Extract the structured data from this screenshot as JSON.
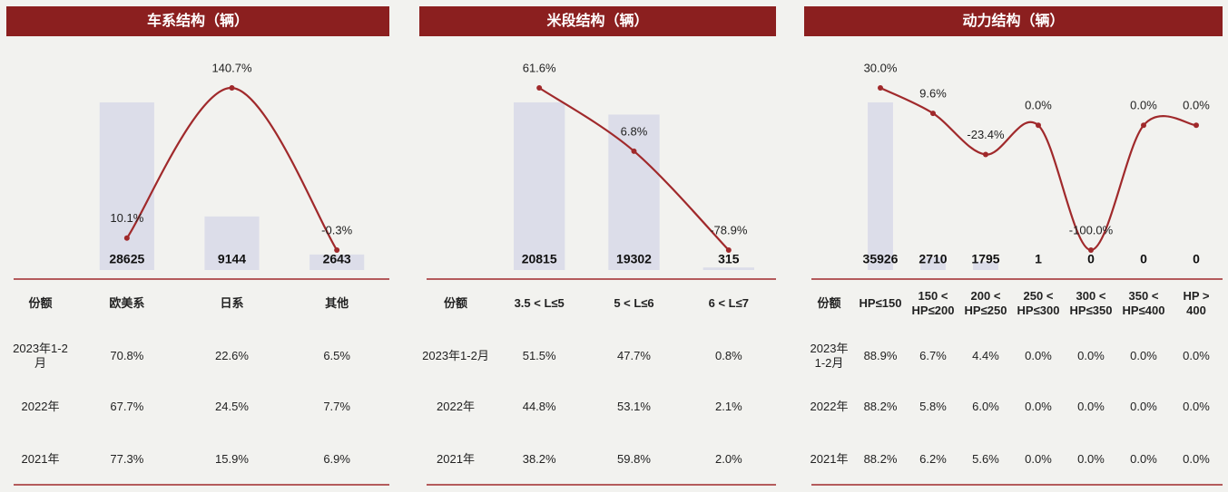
{
  "chart_data": [
    {
      "type": "bar",
      "title": "车系结构（辆）",
      "categories": [
        "欧美系",
        "日系",
        "其他"
      ],
      "series": [
        {
          "type": "bar",
          "color": "#dcdde9",
          "values": [
            28625,
            9144,
            2643
          ]
        },
        {
          "type": "line",
          "color": "#a0292b",
          "values": [
            10.1,
            140.7,
            -0.3
          ],
          "value_labels": [
            "10.1%",
            "140.7%",
            "-0.3%"
          ]
        }
      ],
      "table": {
        "corner": "份额",
        "rows": [
          {
            "label": "2023年1-2月",
            "cells": [
              "70.8%",
              "22.6%",
              "6.5%"
            ]
          },
          {
            "label": "2022年",
            "cells": [
              "67.7%",
              "24.5%",
              "7.7%"
            ]
          },
          {
            "label": "2021年",
            "cells": [
              "77.3%",
              "15.9%",
              "6.9%"
            ]
          }
        ]
      }
    },
    {
      "type": "bar",
      "title": "米段结构（辆）",
      "categories": [
        "3.5 < L≤5",
        "5 < L≤6",
        "6 < L≤7"
      ],
      "series": [
        {
          "type": "bar",
          "color": "#dcdde9",
          "values": [
            20815,
            19302,
            315
          ]
        },
        {
          "type": "line",
          "color": "#a0292b",
          "values": [
            61.6,
            6.8,
            -78.9
          ],
          "value_labels": [
            "61.6%",
            "6.8%",
            "-78.9%"
          ]
        }
      ],
      "table": {
        "corner": "份额",
        "rows": [
          {
            "label": "2023年1-2月",
            "cells": [
              "51.5%",
              "47.7%",
              "0.8%"
            ]
          },
          {
            "label": "2022年",
            "cells": [
              "44.8%",
              "53.1%",
              "2.1%"
            ]
          },
          {
            "label": "2021年",
            "cells": [
              "38.2%",
              "59.8%",
              "2.0%"
            ]
          }
        ]
      }
    },
    {
      "type": "bar",
      "title": "动力结构（辆）",
      "categories": [
        "HP≤150",
        "150 < HP≤200",
        "200 < HP≤250",
        "250 < HP≤300",
        "300 < HP≤350",
        "350 < HP≤400",
        "HP > 400"
      ],
      "series": [
        {
          "type": "bar",
          "color": "#dcdde9",
          "values": [
            35926,
            2710,
            1795,
            1,
            0,
            0,
            0
          ]
        },
        {
          "type": "line",
          "color": "#a0292b",
          "values": [
            30.0,
            9.6,
            -23.4,
            0.0,
            -100.0,
            0.0,
            0.0
          ],
          "value_labels": [
            "30.0%",
            "9.6%",
            "-23.4%",
            "0.0%",
            "-100.0%",
            "0.0%",
            "0.0%"
          ]
        }
      ],
      "table": {
        "corner": "份额",
        "rows": [
          {
            "label": "2023年1-2月",
            "cells": [
              "88.9%",
              "6.7%",
              "4.4%",
              "0.0%",
              "0.0%",
              "0.0%",
              "0.0%"
            ]
          },
          {
            "label": "2022年",
            "cells": [
              "88.2%",
              "5.8%",
              "6.0%",
              "0.0%",
              "0.0%",
              "0.0%",
              "0.0%"
            ]
          },
          {
            "label": "2021年",
            "cells": [
              "88.2%",
              "6.2%",
              "5.6%",
              "0.0%",
              "0.0%",
              "0.0%",
              "0.0%"
            ]
          }
        ]
      }
    }
  ]
}
